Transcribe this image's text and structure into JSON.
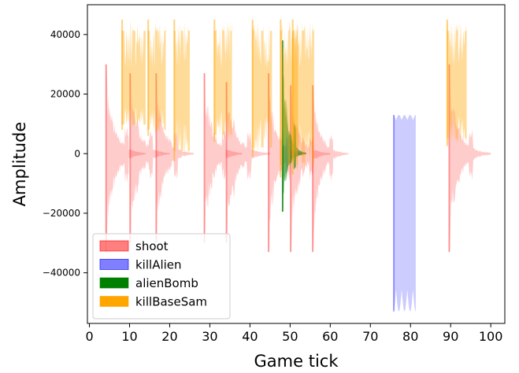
{
  "chart_data": {
    "type": "area",
    "title": "",
    "xlabel": "Game tick",
    "ylabel": "Amplitude",
    "xlim": [
      -0.5,
      103.5
    ],
    "ylim": [
      -57000,
      50000
    ],
    "xticks": [
      0,
      10,
      20,
      30,
      40,
      50,
      60,
      70,
      80,
      90,
      100
    ],
    "xtick_labels": [
      "0",
      "10",
      "20",
      "30",
      "40",
      "50",
      "60",
      "70",
      "80",
      "90",
      "100"
    ],
    "yticks": [
      -40000,
      -20000,
      0,
      20000,
      40000
    ],
    "ytick_labels": [
      "−40000",
      "−20000",
      "0",
      "20000",
      "40000"
    ],
    "grid": false,
    "legend_position": "lower-left",
    "series": [
      {
        "name": "shoot",
        "color": "#ff0000",
        "alpha": 0.2,
        "events": [
          {
            "start": 4,
            "end": 14,
            "max": 30000,
            "min": -33000
          },
          {
            "start": 10,
            "end": 20,
            "max": 27000,
            "min": -30000
          },
          {
            "start": 16.5,
            "end": 26,
            "max": 27000,
            "min": -30000
          },
          {
            "start": 28.5,
            "end": 38,
            "max": 27000,
            "min": -30000
          },
          {
            "start": 34,
            "end": 45,
            "max": 24000,
            "min": -30000
          },
          {
            "start": 44.5,
            "end": 54,
            "max": 27000,
            "min": -33000
          },
          {
            "start": 50,
            "end": 60,
            "max": 23000,
            "min": -33000
          },
          {
            "start": 55.5,
            "end": 64.5,
            "max": 23000,
            "min": -33000
          },
          {
            "start": 89.5,
            "end": 100,
            "max": 30000,
            "min": -33000
          }
        ]
      },
      {
        "name": "killAlien",
        "color": "#0000ff",
        "alpha": 0.2,
        "events": [
          {
            "start": 75.7,
            "end": 81.3,
            "max": 13000,
            "min": -53000
          }
        ]
      },
      {
        "name": "alienBomb",
        "color": "#008000",
        "alpha": 0.6,
        "events": [
          {
            "start": 48,
            "end": 54,
            "max": 38000,
            "min": -19500
          }
        ]
      },
      {
        "name": "killBaseSam",
        "color": "#ffa500",
        "alpha": 0.4,
        "events": [
          {
            "start": 8,
            "end": 14,
            "max": 45000,
            "min": 8000
          },
          {
            "start": 14.5,
            "end": 19,
            "max": 45000,
            "min": 6000
          },
          {
            "start": 21,
            "end": 25,
            "max": 45000,
            "min": -2500
          },
          {
            "start": 31,
            "end": 35.5,
            "max": 45000,
            "min": 4000
          },
          {
            "start": 40.5,
            "end": 45.5,
            "max": 45000,
            "min": -1000
          },
          {
            "start": 47.5,
            "end": 52,
            "max": 45000,
            "min": -8000
          },
          {
            "start": 50.5,
            "end": 56,
            "max": 45000,
            "min": -7000
          },
          {
            "start": 89,
            "end": 94,
            "max": 45000,
            "min": 2500
          }
        ]
      }
    ]
  }
}
